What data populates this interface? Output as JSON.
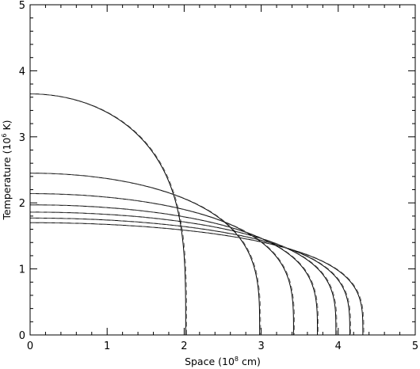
{
  "chart_data": {
    "type": "line",
    "title": "",
    "xlabel": "Space (10^8 cm)",
    "ylabel": "Temperature (10^6 K)",
    "xlabel_parts": {
      "pre": "Space (10",
      "sup": "8",
      "post": " cm)"
    },
    "ylabel_parts": {
      "pre": "Temperature (10",
      "sup": "6",
      "post": " K)"
    },
    "xlim": [
      0,
      5
    ],
    "ylim": [
      0,
      5
    ],
    "x_ticks": [
      "0",
      "1",
      "2",
      "3",
      "4",
      "5"
    ],
    "y_ticks": [
      "0",
      "1",
      "2",
      "3",
      "4",
      "5"
    ],
    "grid": false,
    "line_color": "#000000",
    "series": [
      {
        "T0": 3.65,
        "front": 2.02
      },
      {
        "T0": 2.45,
        "front": 2.98
      },
      {
        "T0": 2.14,
        "front": 3.42
      },
      {
        "T0": 1.97,
        "front": 3.73
      },
      {
        "T0": 1.86,
        "front": 3.97
      },
      {
        "T0": 1.77,
        "front": 4.15
      },
      {
        "T0": 1.7,
        "front": 4.32
      }
    ]
  }
}
